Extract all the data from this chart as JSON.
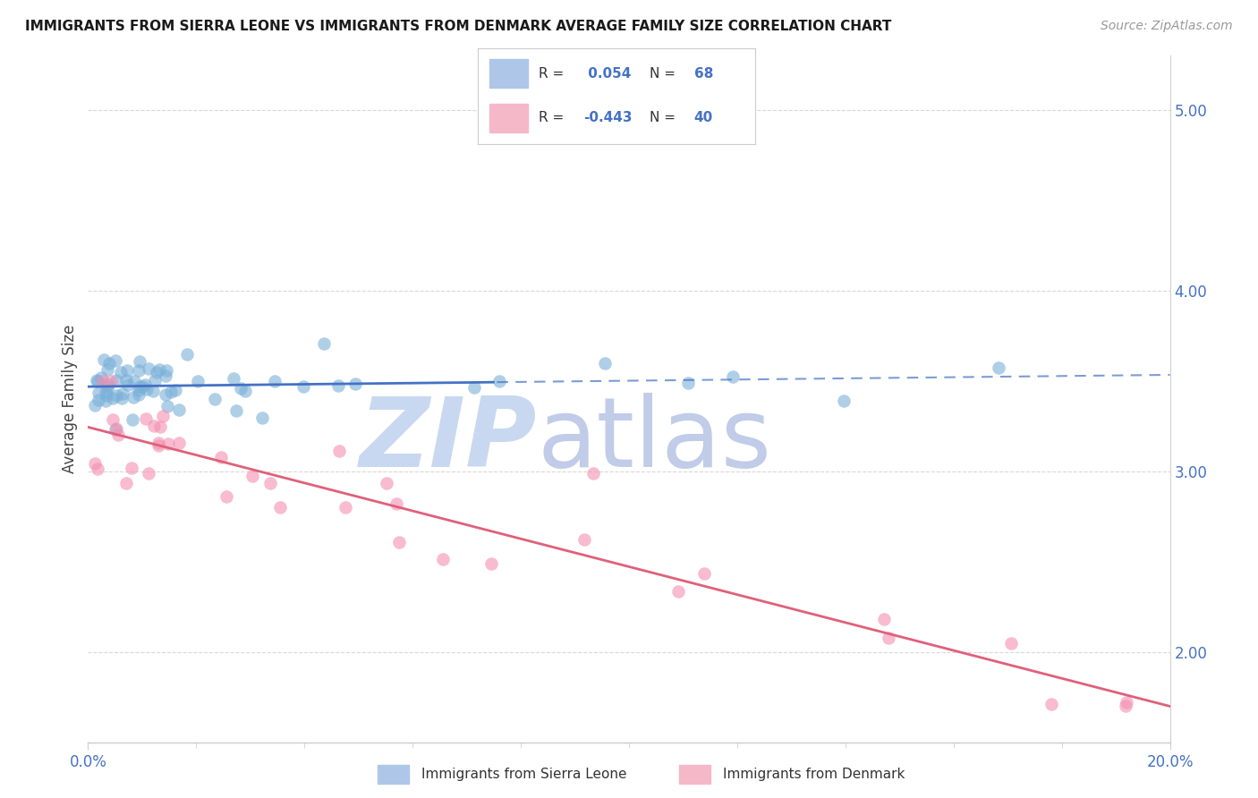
{
  "title": "IMMIGRANTS FROM SIERRA LEONE VS IMMIGRANTS FROM DENMARK AVERAGE FAMILY SIZE CORRELATION CHART",
  "source": "Source: ZipAtlas.com",
  "ylabel": "Average Family Size",
  "right_yticks": [
    2.0,
    3.0,
    4.0,
    5.0
  ],
  "legend_entries": [
    {
      "label": "Immigrants from Sierra Leone",
      "color": "#aec6e8"
    },
    {
      "label": "Immigrants from Denmark",
      "color": "#f4b8c8"
    }
  ],
  "R_sierra": 0.054,
  "N_sierra": 68,
  "R_denmark": -0.443,
  "N_denmark": 40,
  "sierra_scatter_color": "#7ab0d8",
  "denmark_scatter_color": "#f48fb1",
  "sierra_line_color": "#4472c4",
  "denmark_line_color": "#e0607a",
  "background_color": "#ffffff",
  "watermark_zip_color": "#c8d8f0",
  "watermark_atlas_color": "#c0cce8",
  "xmin": 0.0,
  "xmax": 0.2,
  "ymin": 1.5,
  "ymax": 5.3,
  "grid_color": "#d8d8d8",
  "spine_color": "#d0d0d0"
}
